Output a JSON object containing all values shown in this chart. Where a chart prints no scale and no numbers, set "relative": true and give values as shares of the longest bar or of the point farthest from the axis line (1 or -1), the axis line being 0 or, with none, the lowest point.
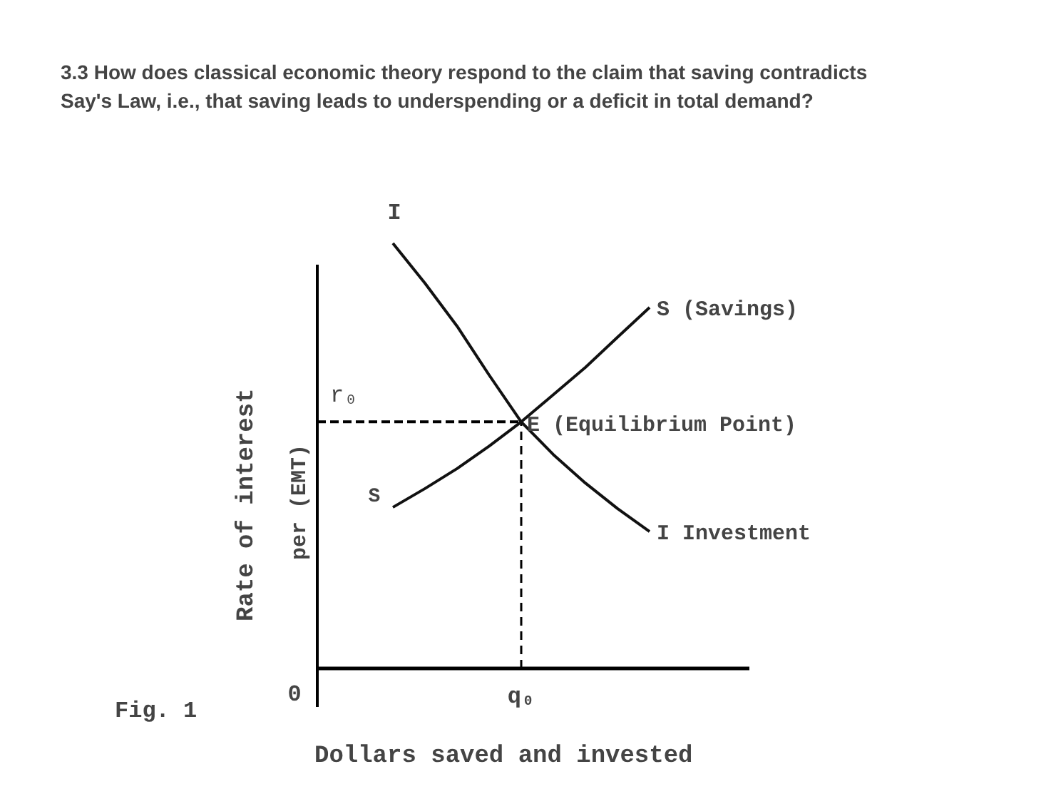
{
  "chart_data": {
    "type": "line",
    "title": "3.3 How does classical economic theory respond to the claim that saving contradicts Say's Law, i.e., that saving leads to underspending or a deficit in total demand?",
    "xlabel": "Dollars saved and invested",
    "ylabel": "Rate of interest per (EMT)",
    "relative": true,
    "categories": [
      null,
      null,
      null,
      null,
      null,
      null,
      null,
      null,
      null
    ],
    "series": [
      {
        "name": "I Investment",
        "color": "#111111",
        "values": [
          1.0,
          0.906,
          0.805,
          0.69,
          0.58,
          0.503,
          0.436,
          0.376,
          0.322
        ]
      },
      {
        "name": "S (Savings)",
        "color": "#111111",
        "values": [
          0.379,
          0.423,
          0.47,
          0.523,
          0.58,
          0.644,
          0.708,
          0.779,
          0.849
        ]
      }
    ],
    "ref_lines": [
      {
        "axis": "y",
        "value": 0.58,
        "label": "r₀",
        "line_style": "dashed"
      }
    ],
    "annotations": [
      "I",
      "S",
      "E (Equilibrium Point)",
      "0",
      "Fig. 1",
      "q₀"
    ]
  }
}
